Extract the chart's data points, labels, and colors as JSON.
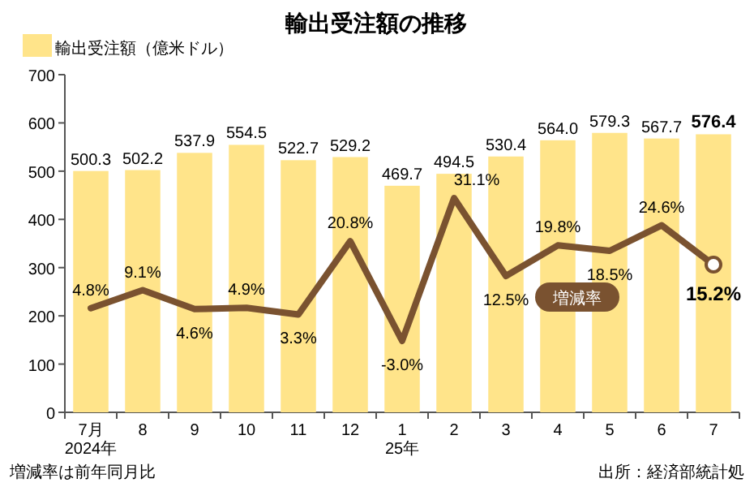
{
  "chart_data": {
    "type": "bar",
    "title": "輸出受注額の推移",
    "categories": [
      "7月\n2024年",
      "8",
      "9",
      "10",
      "11",
      "12",
      "1\n25年",
      "2",
      "3",
      "4",
      "5",
      "6",
      "7"
    ],
    "series": [
      {
        "name": "輸出受注額（億米ドル）",
        "color": "#ffe48a",
        "values": [
          500.3,
          502.2,
          537.9,
          554.5,
          522.7,
          529.2,
          469.7,
          494.5,
          530.4,
          564.0,
          579.3,
          567.7,
          576.4
        ],
        "value_labels": [
          "500.3",
          "502.2",
          "537.9",
          "554.5",
          "522.7",
          "529.2",
          "469.7",
          "494.5",
          "530.4",
          "564.0",
          "579.3",
          "567.7",
          "576.4"
        ]
      },
      {
        "name": "増減率",
        "type": "line",
        "axis": "y2",
        "color": "#7a5230",
        "values": [
          4.8,
          9.1,
          4.6,
          4.9,
          3.3,
          20.8,
          -3.0,
          31.1,
          12.5,
          19.8,
          18.5,
          24.6,
          15.2
        ],
        "value_labels": [
          "4.8%",
          "9.1%",
          "4.6%",
          "4.9%",
          "3.3%",
          "20.8%",
          "-3.0%",
          "31.1%",
          "12.5%",
          "19.8%",
          "18.5%",
          "24.6%",
          "15.2%"
        ]
      }
    ],
    "ylim": [
      0,
      700
    ],
    "yticks": [
      0,
      100,
      200,
      300,
      400,
      500,
      600,
      700
    ],
    "legend": "top left",
    "grid": false,
    "annotations": [
      "増減率は前年同月比",
      "出所：経済部統計処"
    ]
  }
}
